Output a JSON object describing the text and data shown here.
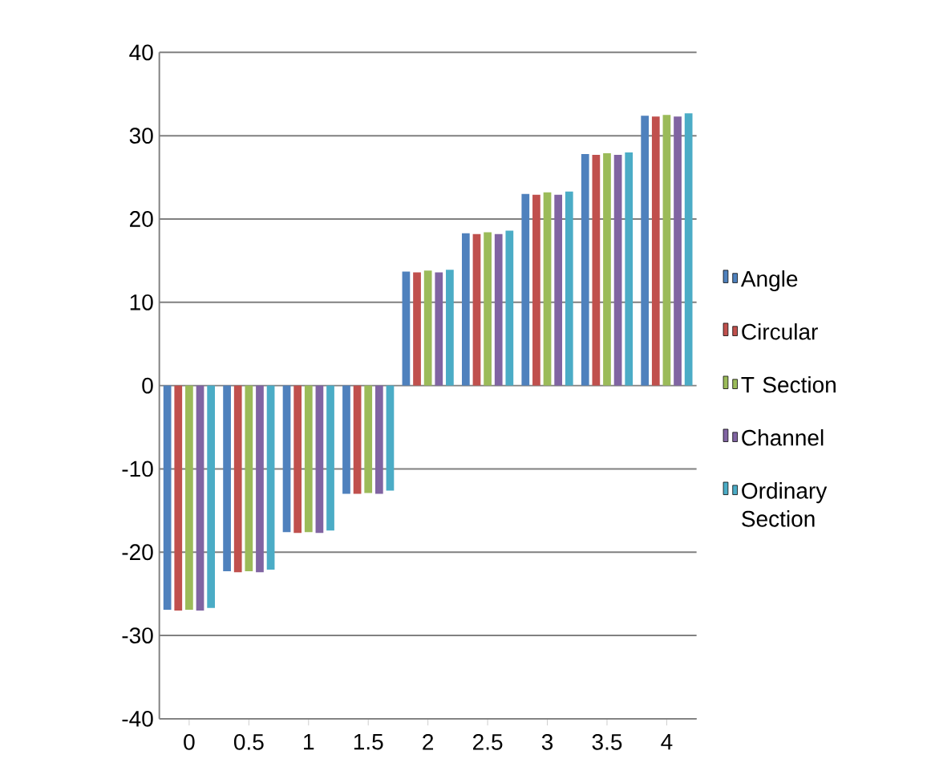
{
  "chart_data": {
    "type": "bar",
    "categories": [
      "0",
      "0.5",
      "1",
      "1.5",
      "2",
      "2.5",
      "3",
      "3.5",
      "4"
    ],
    "series": [
      {
        "name": "Angle",
        "color": "#4f81bd",
        "values": [
          -26.9,
          -22.3,
          -17.6,
          -13.0,
          13.7,
          18.3,
          23.0,
          27.8,
          32.4
        ]
      },
      {
        "name": "Circular",
        "color": "#c0504d",
        "values": [
          -27.0,
          -22.4,
          -17.7,
          -13.0,
          13.6,
          18.2,
          22.9,
          27.7,
          32.3
        ]
      },
      {
        "name": "T Section",
        "color": "#9bbb59",
        "values": [
          -26.9,
          -22.3,
          -17.6,
          -12.9,
          13.8,
          18.4,
          23.2,
          27.9,
          32.5
        ]
      },
      {
        "name": "Channel",
        "color": "#8064a2",
        "values": [
          -27.0,
          -22.4,
          -17.7,
          -13.0,
          13.6,
          18.2,
          22.9,
          27.7,
          32.3
        ]
      },
      {
        "name": "Ordinary Section",
        "color": "#4bacc6",
        "values": [
          -26.7,
          -22.1,
          -17.4,
          -12.6,
          13.9,
          18.6,
          23.3,
          28.0,
          32.7
        ]
      }
    ],
    "ylim": [
      -40,
      40
    ],
    "yticks": [
      -40,
      -30,
      -20,
      -10,
      0,
      10,
      20,
      30,
      40
    ],
    "grid": "y",
    "legend": "right"
  }
}
